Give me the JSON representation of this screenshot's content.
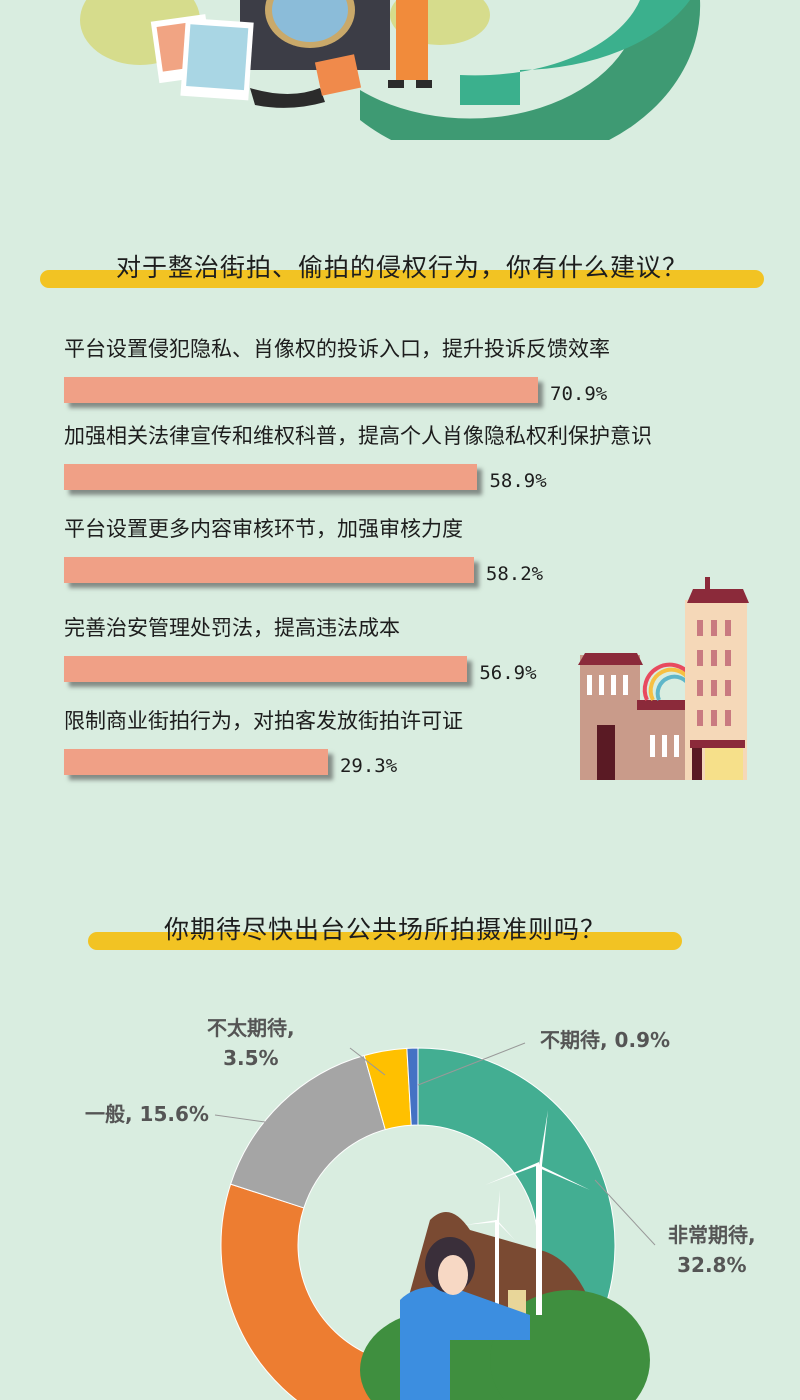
{
  "colors": {
    "background": "#d9ede0",
    "title_highlight": "#f2c323",
    "bar": "#f0a086"
  },
  "chart_data": [
    {
      "type": "bar",
      "orientation": "horizontal",
      "title": "对于整治街拍、偷拍的侵权行为，你有什么建议？",
      "categories": [
        "平台设置侵犯隐私、肖像权的投诉入口，提升投诉反馈效率",
        "加强相关法律宣传和维权科普，提高个人肖像隐私权利保护意识",
        "平台设置更多内容审核环节，加强审核力度",
        "完善治安管理处罚法，提高违法成本",
        "限制商业街拍行为，对拍客发放街拍许可证"
      ],
      "values": [
        70.9,
        58.9,
        58.2,
        56.9,
        29.3
      ],
      "value_labels": [
        "70.9%",
        "58.9%",
        "58.2%",
        "56.9%",
        "29.3%"
      ],
      "unit": "%"
    },
    {
      "type": "pie",
      "style": "donut",
      "title": "你期待尽快出台公共场所拍摄准则吗？",
      "slices": [
        {
          "name": "非常期待",
          "value": 32.8,
          "label_name": "非常期待,",
          "label_value": "32.8%",
          "color": "#43ae92"
        },
        {
          "name": "",
          "value": 47.2,
          "color": "#ed7d31"
        },
        {
          "name": "一般",
          "value": 15.6,
          "label": "一般, 15.6%",
          "color": "#a5a5a5"
        },
        {
          "name": "不太期待",
          "value": 3.5,
          "label_name": "不太期待,",
          "label_value": "3.5%",
          "color": "#ffc000"
        },
        {
          "name": "不期待",
          "value": 0.9,
          "label": "不期待, 0.9%",
          "color": "#4472c4"
        }
      ]
    }
  ]
}
